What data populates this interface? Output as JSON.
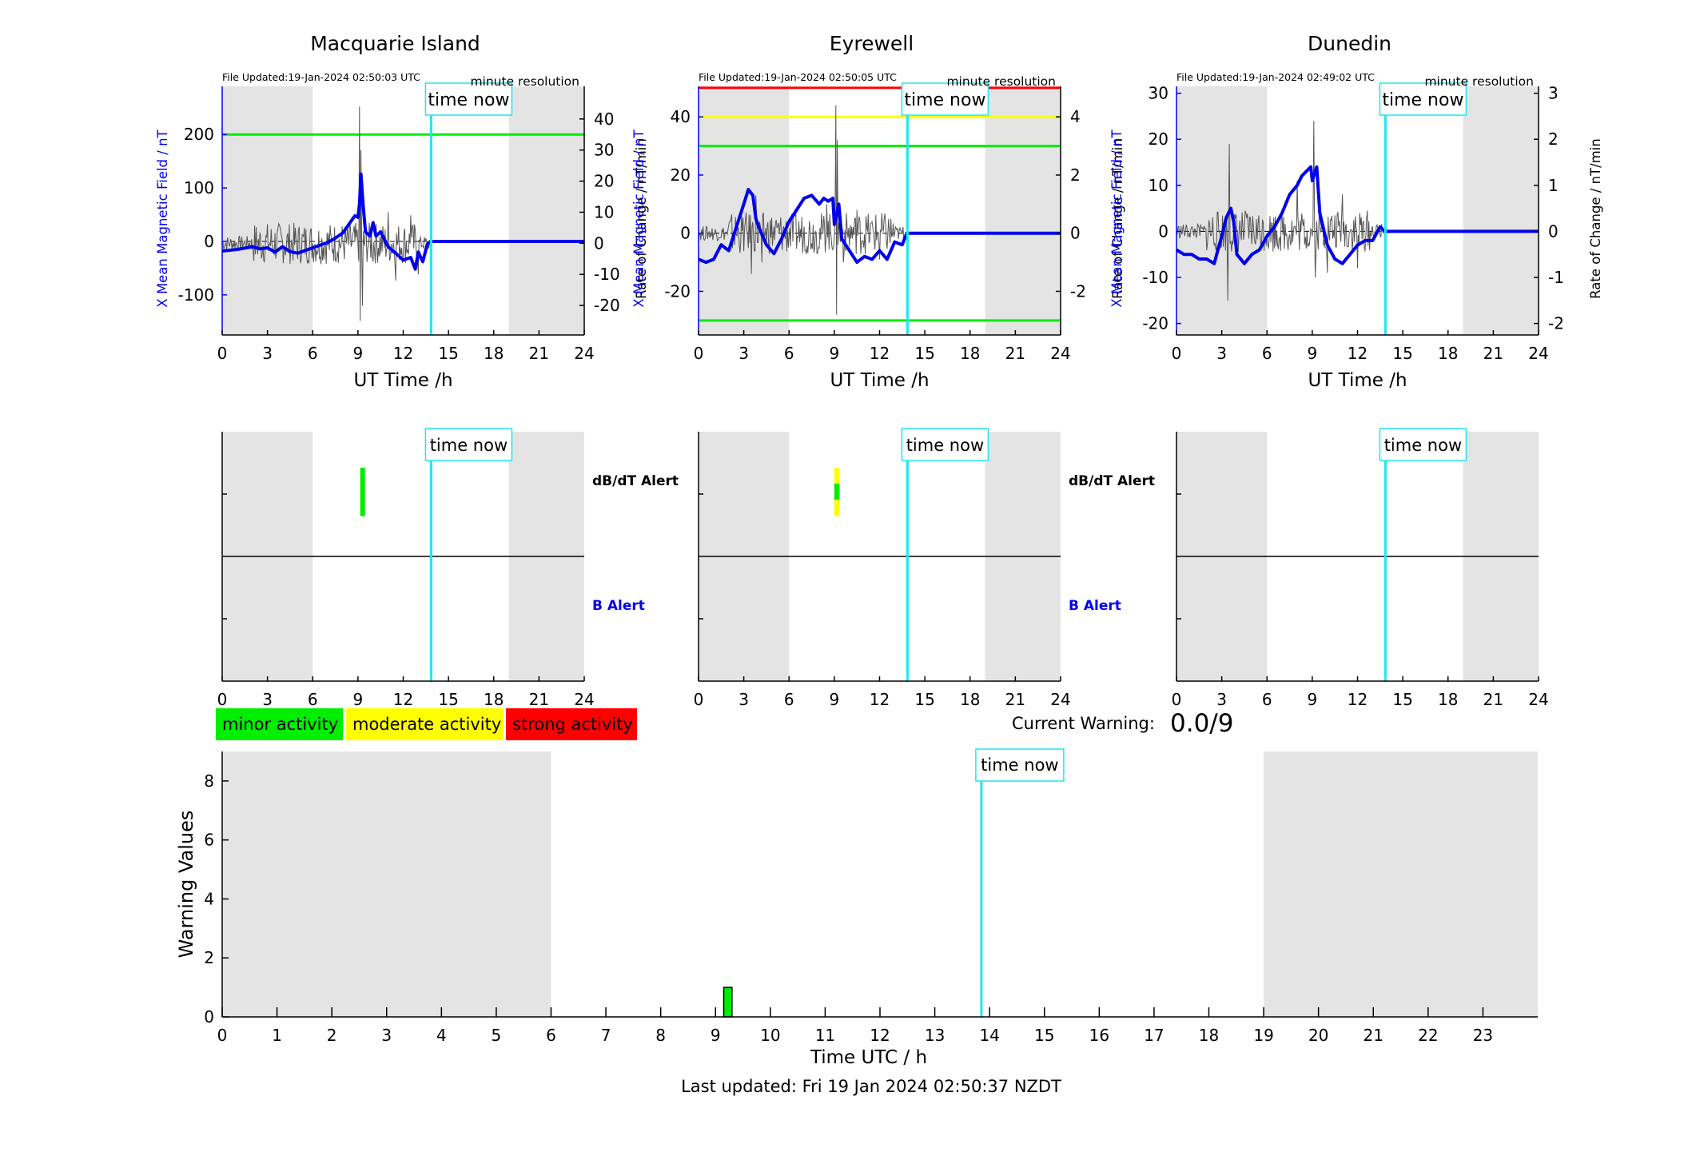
{
  "colors": {
    "field": "#0000ee",
    "rate": "#555555",
    "night": "#e4e4e4",
    "now": "#22e5f0",
    "minor": "#00ee00",
    "moderate": "#ffff00",
    "strong": "#ff0000"
  },
  "common": {
    "time_now_label": "time now",
    "time_now_hour": 13.85,
    "night_start": 0,
    "day_start": 6,
    "evening_start": 19,
    "xlabel": "UT Time /h",
    "x_ticks": [
      0,
      3,
      6,
      9,
      12,
      15,
      18,
      21,
      24
    ],
    "resolution_label": "minute resolution",
    "left_axis_label": "X Mean Magnetic Field / nT",
    "right_axis_label": "Rate of Change / nT/min",
    "dbdt_alert_label": "dB/dT Alert",
    "b_alert_label": "B Alert"
  },
  "stations": [
    {
      "name": "Macquarie Island",
      "file_updated": "File Updated:19-Jan-2024 02:50:03 UTC",
      "ylim": [
        -175,
        290
      ],
      "yticks": [
        -100,
        0,
        100,
        200
      ],
      "y2lim": [
        -29.5,
        50.5
      ],
      "y2ticks": [
        -20,
        -10,
        0,
        10,
        20,
        30,
        40
      ],
      "thresholds": [
        {
          "value": 200,
          "color": "#00ee00"
        }
      ],
      "field_points": [
        [
          0,
          -18
        ],
        [
          1,
          -15
        ],
        [
          2,
          -10
        ],
        [
          2.5,
          -14
        ],
        [
          3,
          -12
        ],
        [
          3.5,
          -20
        ],
        [
          4,
          -10
        ],
        [
          4.5,
          -19
        ],
        [
          5,
          -22
        ],
        [
          6,
          -12
        ],
        [
          7,
          -2
        ],
        [
          7.5,
          6
        ],
        [
          8,
          16
        ],
        [
          8.5,
          36
        ],
        [
          8.8,
          48
        ],
        [
          9,
          45
        ],
        [
          9.1,
          70
        ],
        [
          9.2,
          126
        ],
        [
          9.35,
          65
        ],
        [
          9.5,
          18
        ],
        [
          9.8,
          10
        ],
        [
          10,
          35
        ],
        [
          10.2,
          10
        ],
        [
          10.5,
          18
        ],
        [
          11,
          -10
        ],
        [
          11.5,
          -22
        ],
        [
          12,
          -35
        ],
        [
          12.5,
          -30
        ],
        [
          12.8,
          -52
        ],
        [
          13,
          -20
        ],
        [
          13.3,
          -38
        ],
        [
          13.6,
          -5
        ],
        [
          13.8,
          0
        ],
        [
          24,
          0
        ]
      ],
      "rate_spikes": [
        [
          9.1,
          44
        ],
        [
          9.15,
          -25
        ],
        [
          9.2,
          30
        ],
        [
          9.3,
          -20
        ],
        [
          9.5,
          8
        ],
        [
          10,
          -6
        ],
        [
          11,
          10
        ],
        [
          11.5,
          -12
        ],
        [
          12.5,
          9
        ],
        [
          13,
          -10
        ]
      ],
      "dbdt_alerts": [
        {
          "start": 9.15,
          "end": 9.45,
          "levels": [
            "minor"
          ]
        }
      ],
      "b_alerts": []
    },
    {
      "name": "Eyrewell",
      "file_updated": "File Updated:19-Jan-2024 02:50:05 UTC",
      "ylim": [
        -35,
        50.5
      ],
      "yticks": [
        -20,
        0,
        20,
        40
      ],
      "y2lim": [
        -3.5,
        5.05
      ],
      "y2ticks": [
        -2,
        0,
        2,
        4
      ],
      "thresholds": [
        {
          "value": 50,
          "color": "#ff0000"
        },
        {
          "value": 40,
          "color": "#ffff00"
        },
        {
          "value": 30,
          "color": "#00ee00"
        },
        {
          "value": -30,
          "color": "#00ee00"
        }
      ],
      "field_points": [
        [
          0,
          -9
        ],
        [
          0.5,
          -10
        ],
        [
          1,
          -9
        ],
        [
          1.5,
          -4
        ],
        [
          2,
          -6
        ],
        [
          2.5,
          2
        ],
        [
          3,
          10
        ],
        [
          3.3,
          15
        ],
        [
          3.6,
          13
        ],
        [
          3.8,
          5
        ],
        [
          4,
          2
        ],
        [
          4.5,
          -4
        ],
        [
          5,
          -7
        ],
        [
          5.5,
          -2
        ],
        [
          6,
          4
        ],
        [
          6.5,
          8
        ],
        [
          7,
          12
        ],
        [
          7.5,
          13
        ],
        [
          8,
          10
        ],
        [
          8.3,
          12
        ],
        [
          8.6,
          11
        ],
        [
          8.9,
          12
        ],
        [
          9,
          3
        ],
        [
          9.3,
          10
        ],
        [
          9.5,
          -2
        ],
        [
          10,
          -6
        ],
        [
          10.5,
          -10
        ],
        [
          11,
          -8
        ],
        [
          11.5,
          -9
        ],
        [
          12,
          -6
        ],
        [
          12.5,
          -9
        ],
        [
          13,
          -3
        ],
        [
          13.5,
          -4
        ],
        [
          13.8,
          0
        ],
        [
          24,
          0
        ]
      ],
      "rate_spikes": [
        [
          9.1,
          4.4
        ],
        [
          9.15,
          -2.8
        ],
        [
          9.2,
          3.2
        ],
        [
          3.5,
          -1.4
        ],
        [
          3.8,
          1.3
        ],
        [
          4.2,
          -1.0
        ],
        [
          8.5,
          1.0
        ],
        [
          9.6,
          -1.0
        ],
        [
          10.5,
          0.8
        ],
        [
          12,
          -0.9
        ]
      ],
      "dbdt_alerts": [
        {
          "start": 9.0,
          "end": 9.35,
          "levels": [
            "moderate",
            "minor",
            "moderate"
          ]
        }
      ],
      "b_alerts": []
    },
    {
      "name": "Dunedin",
      "file_updated": "File Updated:19-Jan-2024 02:49:02 UTC",
      "ylim": [
        -22.5,
        31.5
      ],
      "yticks": [
        -20,
        -10,
        0,
        10,
        20,
        30
      ],
      "y2lim": [
        -2.25,
        3.15
      ],
      "y2ticks": [
        -2,
        -1,
        0,
        1,
        2,
        3
      ],
      "thresholds": [],
      "field_points": [
        [
          0,
          -4
        ],
        [
          0.5,
          -5
        ],
        [
          1,
          -5
        ],
        [
          1.5,
          -6
        ],
        [
          2,
          -6
        ],
        [
          2.5,
          -7
        ],
        [
          3,
          -1
        ],
        [
          3.3,
          3
        ],
        [
          3.6,
          5
        ],
        [
          3.8,
          2
        ],
        [
          4,
          -5
        ],
        [
          4.5,
          -7
        ],
        [
          5,
          -5
        ],
        [
          5.5,
          -4
        ],
        [
          6,
          -1
        ],
        [
          6.5,
          1
        ],
        [
          7,
          4
        ],
        [
          7.5,
          8
        ],
        [
          8,
          10
        ],
        [
          8.3,
          12
        ],
        [
          8.6,
          13
        ],
        [
          8.9,
          14
        ],
        [
          9,
          11
        ],
        [
          9.3,
          14
        ],
        [
          9.5,
          4
        ],
        [
          10,
          -3
        ],
        [
          10.5,
          -6
        ],
        [
          11,
          -7
        ],
        [
          11.5,
          -5
        ],
        [
          12,
          -3
        ],
        [
          12.5,
          -2
        ],
        [
          13,
          -2
        ],
        [
          13.5,
          1
        ],
        [
          13.8,
          0
        ],
        [
          24,
          0
        ]
      ],
      "rate_spikes": [
        [
          3.5,
          1.9
        ],
        [
          3.4,
          -1.5
        ],
        [
          9.1,
          2.4
        ],
        [
          9.2,
          -1.0
        ],
        [
          8.0,
          1.1
        ],
        [
          10,
          -0.9
        ],
        [
          11,
          0.8
        ],
        [
          12,
          -0.8
        ]
      ],
      "dbdt_alerts": [],
      "b_alerts": []
    }
  ],
  "legend": [
    {
      "label": "minor activity",
      "color": "#00ee00"
    },
    {
      "label": "moderate activity",
      "color": "#ffff00"
    },
    {
      "label": "strong activity",
      "color": "#ff0000"
    }
  ],
  "current_warning": {
    "label": "Current Warning:",
    "value": "0.0/9"
  },
  "warning_chart": {
    "ylabel": "Warning Values",
    "xlabel": "Time UTC / h",
    "ylim": [
      0,
      9
    ],
    "yticks": [
      0,
      2,
      4,
      6,
      8
    ],
    "xlim": [
      0,
      24
    ],
    "x_ticks": [
      0,
      1,
      2,
      3,
      4,
      5,
      6,
      7,
      8,
      9,
      10,
      11,
      12,
      13,
      14,
      15,
      16,
      17,
      18,
      19,
      20,
      21,
      22,
      23
    ],
    "night_start": 0,
    "day_start": 6,
    "evening_start": 19,
    "time_now_hour": 13.85,
    "bars": [
      {
        "x": 9.15,
        "width": 0.15,
        "value": 1,
        "color": "#00ee00"
      }
    ]
  },
  "chart_data": [
    {
      "type": "line",
      "title": "Macquarie Island",
      "xlabel": "UT Time /h",
      "ylabel": "X Mean Magnetic Field / nT",
      "y2label": "Rate of Change / nT/min",
      "xlim": [
        0,
        24
      ],
      "ylim": [
        -175,
        290
      ],
      "series": [
        {
          "name": "X Mean Magnetic Field / nT"
        }
      ]
    },
    {
      "type": "line",
      "title": "Eyrewell",
      "xlabel": "UT Time /h",
      "ylabel": "X Mean Magnetic Field / nT",
      "y2label": "Rate of Change / nT/min",
      "xlim": [
        0,
        24
      ],
      "ylim": [
        -35,
        50.5
      ],
      "series": [
        {
          "name": "X Mean Magnetic Field / nT"
        }
      ]
    },
    {
      "type": "line",
      "title": "Dunedin",
      "xlabel": "UT Time /h",
      "ylabel": "X Mean Magnetic Field / nT",
      "y2label": "Rate of Change / nT/min",
      "xlim": [
        0,
        24
      ],
      "ylim": [
        -22.5,
        31.5
      ],
      "series": [
        {
          "name": "X Mean Magnetic Field / nT"
        }
      ]
    },
    {
      "type": "bar",
      "xlabel": "Time UTC / h",
      "ylabel": "Warning Values",
      "xlim": [
        0,
        24
      ],
      "ylim": [
        0,
        9
      ],
      "x": [
        9.15
      ],
      "values": [
        1
      ]
    }
  ],
  "last_updated": "Last updated: Fri 19 Jan 2024 02:50:37 NZDT"
}
